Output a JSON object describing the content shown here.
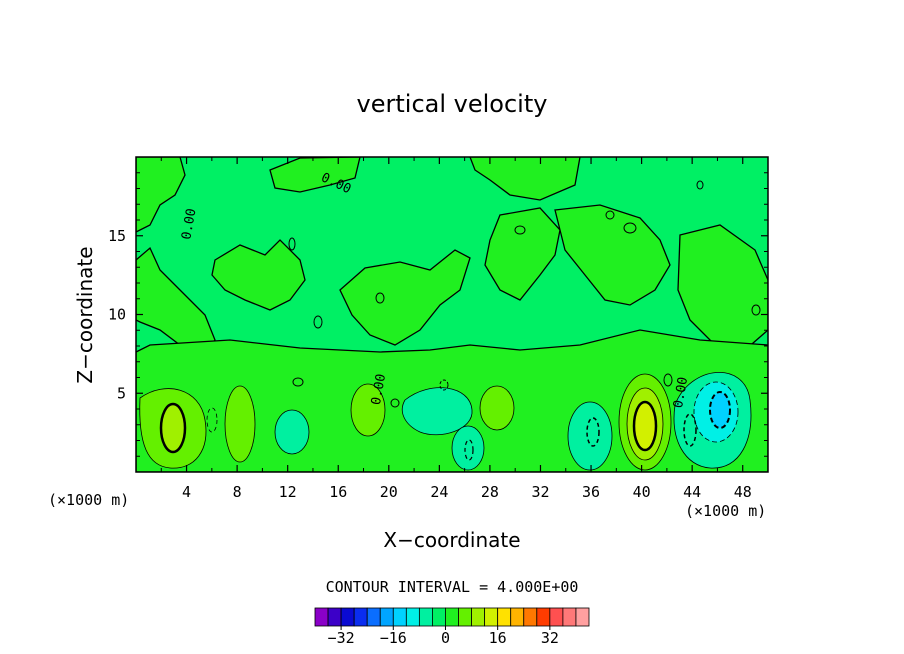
{
  "chart_data": {
    "type": "contour",
    "title": "vertical velocity",
    "xlabel": "X−coordinate",
    "ylabel": "Z−coordinate",
    "x_unit_left": "(×1000 m)",
    "x_unit_right": "(×1000 m)",
    "xlim": [
      0,
      50
    ],
    "ylim": [
      0,
      20
    ],
    "x_ticks": [
      4,
      8,
      12,
      16,
      20,
      24,
      28,
      32,
      36,
      40,
      44,
      48
    ],
    "y_ticks": [
      5,
      10,
      15
    ],
    "contour_interval_label": "CONTOUR INTERVAL = 4.000E+00",
    "contour_labels": [
      {
        "text": "0.00",
        "x": 15.7,
        "y": 18.1
      },
      {
        "text": "0.00",
        "x": 4.5,
        "y": 15.7
      },
      {
        "text": "0.00",
        "x": 19.5,
        "y": 5.2
      },
      {
        "text": "0.00",
        "x": 43.4,
        "y": 5.0
      }
    ],
    "colorbar": {
      "colors": [
        "#8a00c8",
        "#3c00c8",
        "#0a0ad2",
        "#0a2df0",
        "#0a6eff",
        "#00a5ff",
        "#00d2ff",
        "#00f0e6",
        "#00f0a0",
        "#00f064",
        "#20f020",
        "#64f000",
        "#a0f000",
        "#d2f000",
        "#ffe100",
        "#ffb400",
        "#ff7800",
        "#ff3c00",
        "#ff5050",
        "#ff7878",
        "#ffa0a0"
      ],
      "tick_labels": [
        "−32",
        "−16",
        "0",
        "16",
        "32"
      ],
      "tick_values": [
        -32,
        -16,
        0,
        16,
        32
      ]
    },
    "features": [
      {
        "x": 3.0,
        "y": 2.8,
        "value": 14,
        "sign": "positive"
      },
      {
        "x": 8.0,
        "y": 3.0,
        "value": 6,
        "sign": "positive"
      },
      {
        "x": 12.5,
        "y": 2.2,
        "value": -4,
        "sign": "negative"
      },
      {
        "x": 18.5,
        "y": 3.8,
        "value": 6,
        "sign": "positive"
      },
      {
        "x": 23.5,
        "y": 4.1,
        "value": -6,
        "sign": "negative"
      },
      {
        "x": 26.5,
        "y": 1.6,
        "value": -6,
        "sign": "negative"
      },
      {
        "x": 28.5,
        "y": 3.8,
        "value": 6,
        "sign": "positive"
      },
      {
        "x": 36.0,
        "y": 2.4,
        "value": -6,
        "sign": "negative"
      },
      {
        "x": 40.3,
        "y": 2.8,
        "value": 16,
        "sign": "positive"
      },
      {
        "x": 46.0,
        "y": 3.5,
        "value": -10,
        "sign": "negative"
      }
    ]
  }
}
